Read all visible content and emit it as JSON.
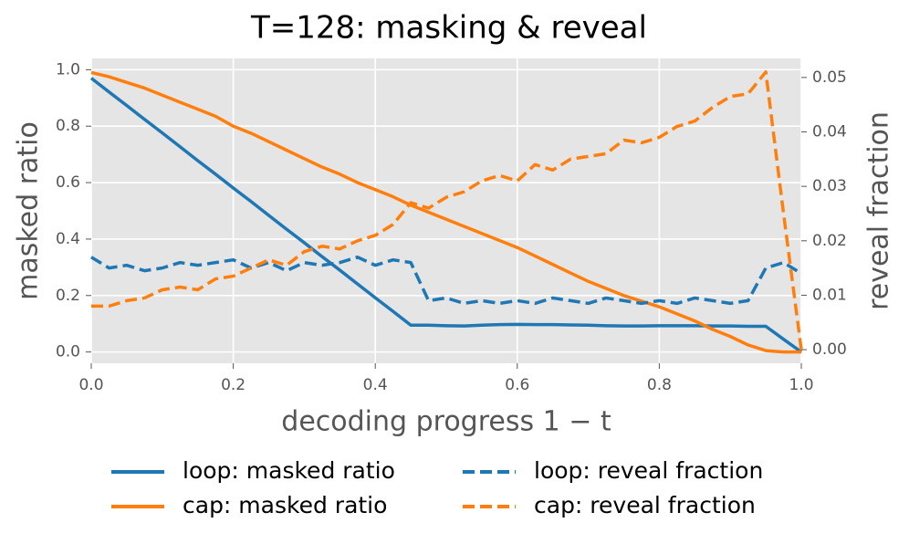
{
  "chart_data": {
    "type": "line",
    "title": "T=128: masking & reveal",
    "x_label": "decoding progress 1 − t",
    "y_label": "masked ratio",
    "y2_label": "reveal fraction",
    "x": [
      0,
      0.025,
      0.05,
      0.075,
      0.1,
      0.125,
      0.15,
      0.175,
      0.2,
      0.225,
      0.25,
      0.275,
      0.3,
      0.325,
      0.35,
      0.375,
      0.4,
      0.425,
      0.45,
      0.475,
      0.5,
      0.525,
      0.55,
      0.575,
      0.6,
      0.625,
      0.65,
      0.675,
      0.7,
      0.725,
      0.75,
      0.775,
      0.8,
      0.825,
      0.85,
      0.875,
      0.9,
      0.925,
      0.95,
      0.975,
      1.0
    ],
    "series": [
      {
        "name": "loop: masked ratio",
        "color": "#1f77b4",
        "linestyle": "solid",
        "axis": "y",
        "values": [
          0.97,
          0.921,
          0.873,
          0.824,
          0.776,
          0.727,
          0.678,
          0.63,
          0.581,
          0.533,
          0.484,
          0.435,
          0.387,
          0.338,
          0.29,
          0.241,
          0.192,
          0.144,
          0.095,
          0.095,
          0.093,
          0.092,
          0.095,
          0.097,
          0.098,
          0.097,
          0.097,
          0.096,
          0.095,
          0.093,
          0.092,
          0.092,
          0.093,
          0.093,
          0.093,
          0.092,
          0.092,
          0.091,
          0.091,
          0.045,
          0.0
        ]
      },
      {
        "name": "cap: masked ratio",
        "color": "#ff7f0e",
        "linestyle": "solid",
        "axis": "y",
        "values": [
          0.99,
          0.975,
          0.955,
          0.935,
          0.91,
          0.885,
          0.86,
          0.835,
          0.8,
          0.775,
          0.745,
          0.715,
          0.685,
          0.655,
          0.63,
          0.6,
          0.575,
          0.55,
          0.52,
          0.495,
          0.47,
          0.445,
          0.42,
          0.395,
          0.37,
          0.34,
          0.31,
          0.28,
          0.25,
          0.225,
          0.2,
          0.18,
          0.16,
          0.135,
          0.11,
          0.08,
          0.055,
          0.025,
          0.005,
          0.0,
          0.0
        ]
      },
      {
        "name": "loop: reveal fraction",
        "color": "#1f77b4",
        "linestyle": "dashed",
        "axis": "y2",
        "values": [
          0.017,
          0.015,
          0.0155,
          0.0145,
          0.015,
          0.016,
          0.0155,
          0.016,
          0.0165,
          0.015,
          0.016,
          0.0145,
          0.016,
          0.0155,
          0.016,
          0.017,
          0.0155,
          0.0165,
          0.016,
          0.009,
          0.0095,
          0.0085,
          0.009,
          0.0085,
          0.009,
          0.0085,
          0.0095,
          0.009,
          0.0085,
          0.0095,
          0.009,
          0.0085,
          0.009,
          0.0085,
          0.0095,
          0.009,
          0.0085,
          0.009,
          0.015,
          0.016,
          0.014
        ]
      },
      {
        "name": "cap: reveal fraction",
        "color": "#ff7f0e",
        "linestyle": "dashed",
        "axis": "y2",
        "values": [
          0.008,
          0.008,
          0.009,
          0.0095,
          0.011,
          0.0115,
          0.011,
          0.013,
          0.0135,
          0.015,
          0.0165,
          0.0155,
          0.018,
          0.019,
          0.0185,
          0.02,
          0.021,
          0.023,
          0.027,
          0.026,
          0.028,
          0.029,
          0.031,
          0.032,
          0.031,
          0.034,
          0.033,
          0.035,
          0.0355,
          0.036,
          0.0385,
          0.038,
          0.039,
          0.041,
          0.042,
          0.0445,
          0.0465,
          0.047,
          0.051,
          0.025,
          0.0
        ]
      }
    ],
    "xlim": [
      0,
      1.0
    ],
    "xticks": [
      {
        "value": 0,
        "label": "0.0"
      },
      {
        "value": 0.2,
        "label": "0.2"
      },
      {
        "value": 0.4,
        "label": "0.4"
      },
      {
        "value": 0.6,
        "label": "0.6"
      },
      {
        "value": 0.8,
        "label": "0.8"
      },
      {
        "value": 1.0,
        "label": "1.0"
      }
    ],
    "ylim": [
      -0.04,
      1.04
    ],
    "yticks": [
      {
        "value": 0,
        "label": "0.0"
      },
      {
        "value": 0.2,
        "label": "0.2"
      },
      {
        "value": 0.4,
        "label": "0.4"
      },
      {
        "value": 0.6,
        "label": "0.6"
      },
      {
        "value": 0.8,
        "label": "0.8"
      },
      {
        "value": 1.0,
        "label": "1.0"
      }
    ],
    "y2lim": [
      -0.0025,
      0.0535
    ],
    "y2ticks": [
      {
        "value": 0,
        "label": "0.00"
      },
      {
        "value": 0.01,
        "label": "0.01"
      },
      {
        "value": 0.02,
        "label": "0.02"
      },
      {
        "value": 0.03,
        "label": "0.03"
      },
      {
        "value": 0.04,
        "label": "0.04"
      },
      {
        "value": 0.05,
        "label": "0.05"
      }
    ],
    "grid": true
  }
}
